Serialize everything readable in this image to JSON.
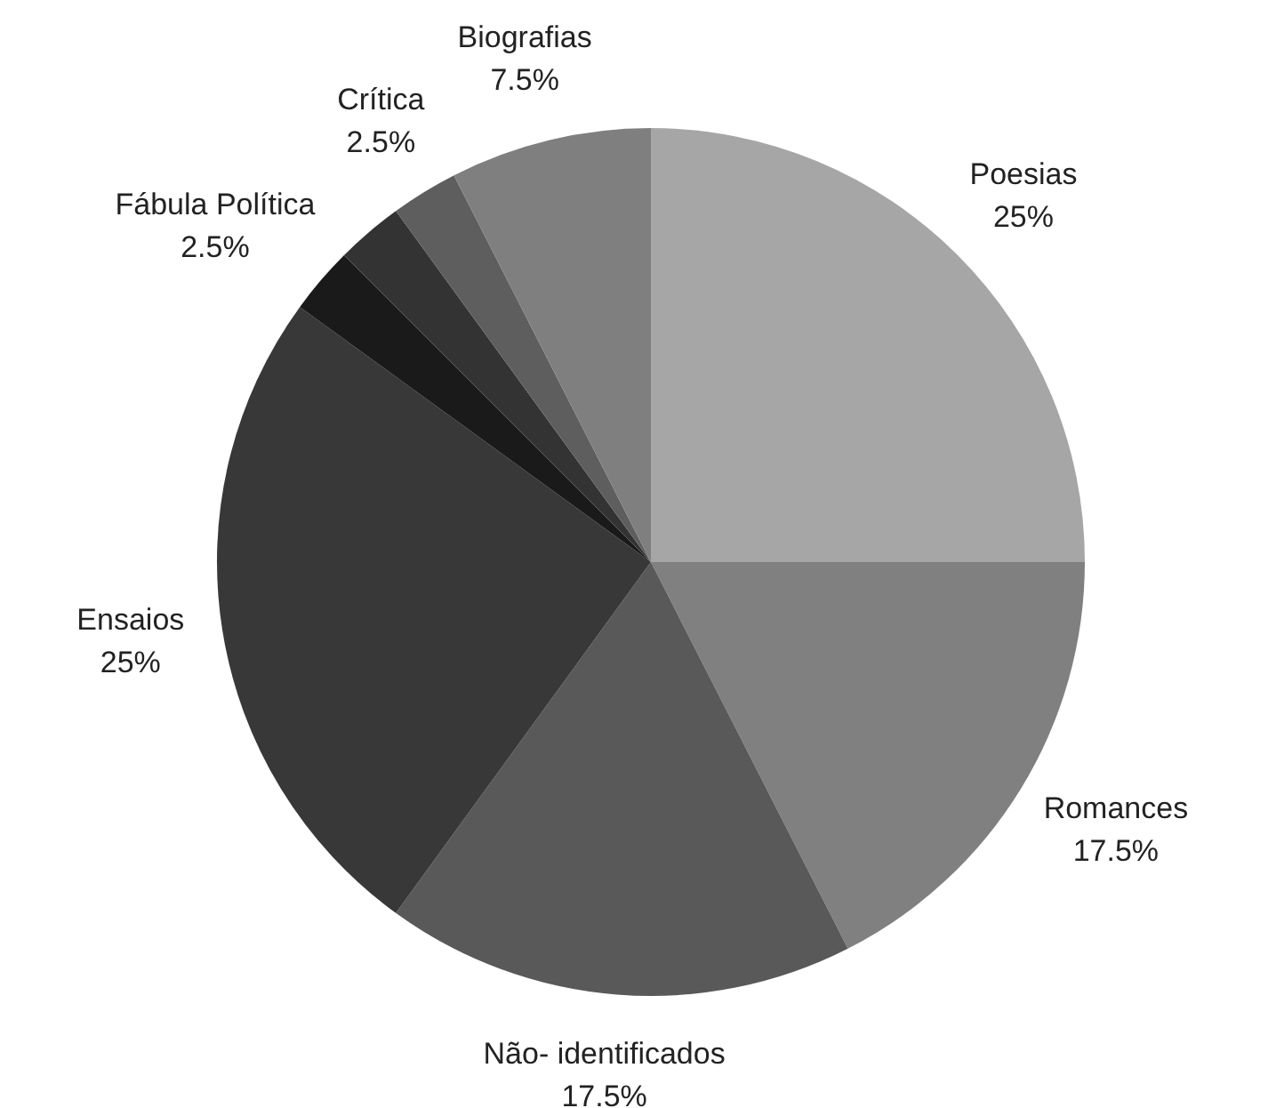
{
  "chart_data": {
    "type": "pie",
    "categories": [
      "Poesias",
      "Romances",
      "Não- identificados",
      "Ensaios",
      "Fábula Política",
      null,
      "Crítica",
      "Biografias"
    ],
    "values": [
      25,
      17.5,
      17.5,
      25,
      2.5,
      2.5,
      2.5,
      7.5
    ],
    "value_labels": [
      "25%",
      "17.5%",
      "17.5%",
      "25%",
      "2.5%",
      null,
      "2.5%",
      "7.5%"
    ],
    "colors": [
      "#a6a6a6",
      "#808080",
      "#595959",
      "#383838",
      "#1a1a1a",
      "#333333",
      "#5e5e5e",
      "#7f7f7f"
    ],
    "legend": false
  }
}
